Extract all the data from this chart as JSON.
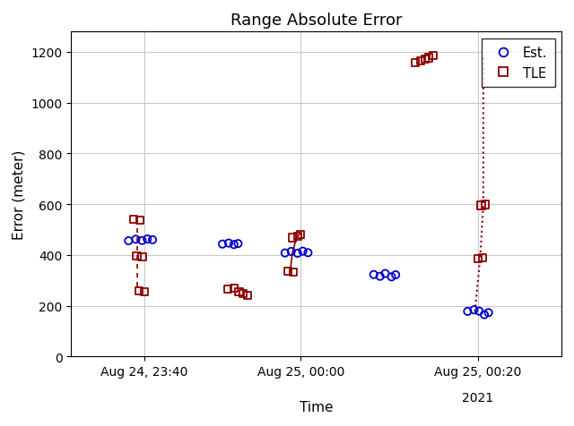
{
  "title": "Range Absolute Error",
  "xlabel": "Time",
  "ylabel": "Error (meter)",
  "ylim": [
    0,
    1280
  ],
  "yticks": [
    0,
    200,
    400,
    600,
    800,
    1000,
    1200
  ],
  "xlim": [
    0.3,
    5.0
  ],
  "background_color": "#ffffff",
  "grid_color": "#c8c8c8",
  "est_color": "#0000cd",
  "tle_color": "#8b0000",
  "xtick_positions": [
    1.0,
    2.5,
    4.2
  ],
  "xtick_labels": [
    "Aug 24, 23:40",
    "Aug 25, 00:00",
    "Aug 25, 00:20"
  ],
  "xtick2_pos": 4.2,
  "xtick2_label": "2021",
  "est_clusters": [
    {
      "x": [
        0.85,
        0.92,
        0.98,
        1.03,
        1.08
      ],
      "y": [
        456,
        462,
        457,
        463,
        460
      ]
    },
    {
      "x": [
        1.75,
        1.81,
        1.86,
        1.9
      ],
      "y": [
        443,
        447,
        441,
        445
      ]
    },
    {
      "x": [
        2.35,
        2.41,
        2.47,
        2.52,
        2.57
      ],
      "y": [
        408,
        414,
        407,
        415,
        409
      ]
    },
    {
      "x": [
        3.2,
        3.26,
        3.31,
        3.37,
        3.41
      ],
      "y": [
        323,
        316,
        327,
        314,
        322
      ]
    },
    {
      "x": [
        4.1,
        4.16,
        4.21,
        4.26,
        4.3
      ],
      "y": [
        178,
        184,
        179,
        165,
        173
      ]
    }
  ],
  "tle_clusters": [
    {
      "x": [
        0.9,
        0.96
      ],
      "y": [
        542,
        538
      ]
    },
    {
      "x": [
        0.93,
        0.98
      ],
      "y": [
        397,
        393
      ]
    },
    {
      "x": [
        0.95,
        1.0
      ],
      "y": [
        259,
        255
      ]
    },
    {
      "x": [
        1.8,
        1.86,
        1.91,
        1.95,
        1.99
      ],
      "y": [
        265,
        268,
        254,
        248,
        242
      ]
    },
    {
      "x": [
        2.38,
        2.43
      ],
      "y": [
        337,
        333
      ]
    },
    {
      "x": [
        2.42,
        2.47,
        2.5
      ],
      "y": [
        468,
        473,
        482
      ]
    },
    {
      "x": [
        3.6,
        3.65,
        3.69,
        3.73,
        3.77
      ],
      "y": [
        1158,
        1164,
        1172,
        1177,
        1185
      ]
    },
    {
      "x": [
        4.2,
        4.24
      ],
      "y": [
        386,
        390
      ]
    },
    {
      "x": [
        4.23,
        4.27
      ],
      "y": [
        595,
        599
      ]
    }
  ],
  "tle_line1": {
    "x": [
      0.93,
      0.93,
      0.93
    ],
    "y": [
      540,
      395,
      258
    ],
    "style": "--",
    "lw": 1.2
  },
  "tle_line2": {
    "x": [
      2.4,
      2.42,
      2.46,
      2.49
    ],
    "y": [
      335,
      408,
      468,
      482
    ],
    "style": "-",
    "lw": 1.2
  },
  "tle_line3": {
    "x": [
      4.17,
      4.22,
      4.25,
      4.25,
      4.25
    ],
    "y": [
      178,
      387,
      596,
      795,
      1180
    ],
    "style": ":",
    "lw": 1.5
  }
}
